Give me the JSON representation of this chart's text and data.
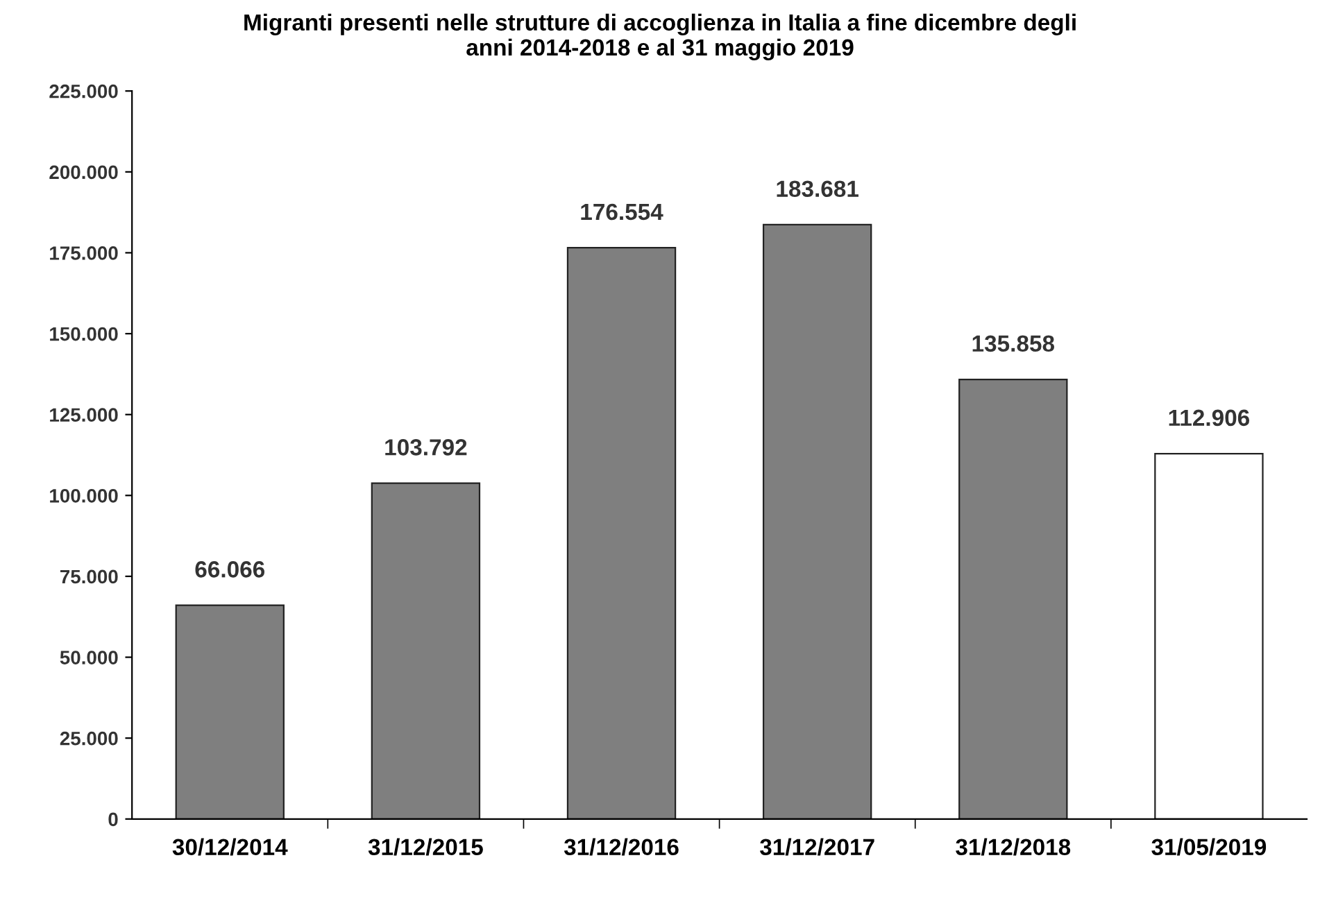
{
  "chart_data": {
    "type": "bar",
    "title": "Migranti presenti nelle strutture di accoglienza in Italia a fine dicembre degli\nanni 2014-2018 e al 31 maggio 2019",
    "categories": [
      "30/12/2014",
      "31/12/2015",
      "31/12/2016",
      "31/12/2017",
      "31/12/2018",
      "31/05/2019"
    ],
    "values": [
      66066,
      103792,
      176554,
      183681,
      135858,
      112906
    ],
    "value_labels": [
      "66.066",
      "103.792",
      "176.554",
      "183.681",
      "135.858",
      "112.906"
    ],
    "colors": [
      "#7f7f7f",
      "#7f7f7f",
      "#7f7f7f",
      "#7f7f7f",
      "#7f7f7f",
      "#ffffff"
    ],
    "ylim": [
      0,
      225000
    ],
    "yticks": [
      {
        "value": 0,
        "label": "0"
      },
      {
        "value": 25000,
        "label": "25.000"
      },
      {
        "value": 50000,
        "label": "50.000"
      },
      {
        "value": 75000,
        "label": "75.000"
      },
      {
        "value": 100000,
        "label": "100.000"
      },
      {
        "value": 125000,
        "label": "125.000"
      },
      {
        "value": 150000,
        "label": "150.000"
      },
      {
        "value": 175000,
        "label": "175.000"
      },
      {
        "value": 200000,
        "label": "200.000"
      },
      {
        "value": 225000,
        "label": "225.000"
      }
    ],
    "grid": false,
    "legend": false
  }
}
